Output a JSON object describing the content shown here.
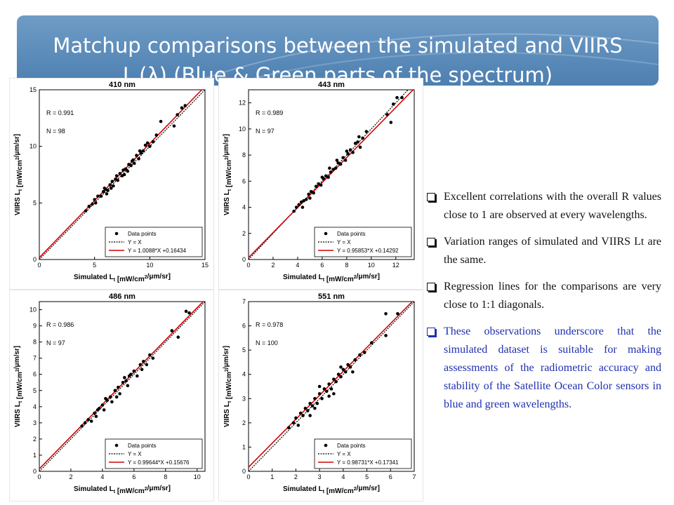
{
  "header": {
    "title_line1": "Matchup comparisons between the simulated and VIIRS",
    "title_line2_prefix": "L",
    "title_line2_sub": "t",
    "title_line2_suffix": "(λ) (Blue & Green parts of the spectrum)"
  },
  "bullets": [
    {
      "text": "Excellent correlations with the overall R values close to 1 are observed at every wavelengths.",
      "color": "#111111"
    },
    {
      "text": "Variation ranges of simulated and VIIRS Lt are the same.",
      "color": "#111111"
    },
    {
      "text": "Regression lines for the comparisons are very close to 1:1 diagonals.",
      "color": "#111111"
    },
    {
      "text": "These observations underscore that the simulated dataset is suitable for making assessments of the radiometric accuracy and stability of the Satellite Ocean Color sensors in blue and green wavelengths.",
      "color": "#1f2fb0"
    }
  ],
  "chart_data": [
    {
      "type": "scatter",
      "title": "410 nm",
      "xlabel": "Simulated L_t [mW/cm^2/μm/sr]",
      "ylabel": "VIIRS L_t [mW/cm^2/μm/sr]",
      "xlim": [
        0,
        15
      ],
      "ylim": [
        0,
        15
      ],
      "xticks": [
        0,
        5,
        10,
        15
      ],
      "yticks": [
        0,
        5,
        10,
        15
      ],
      "annotations": [
        "R = 0.991",
        "N = 98"
      ],
      "legend": {
        "placement": "bottom-right",
        "entries": [
          "Data points",
          "Y = X",
          "Y = 1.0088*X +0.16434"
        ]
      },
      "fit": {
        "slope": 1.0088,
        "intercept": 0.16434
      },
      "points": [
        [
          4.2,
          4.3
        ],
        [
          4.5,
          4.7
        ],
        [
          4.8,
          4.9
        ],
        [
          5.1,
          5.0
        ],
        [
          5.3,
          5.6
        ],
        [
          5.6,
          5.6
        ],
        [
          5.8,
          6.0
        ],
        [
          6.0,
          6.2
        ],
        [
          6.2,
          6.1
        ],
        [
          6.4,
          6.6
        ],
        [
          6.6,
          6.9
        ],
        [
          6.7,
          6.5
        ],
        [
          6.9,
          7.1
        ],
        [
          7.1,
          7.0
        ],
        [
          7.3,
          7.6
        ],
        [
          7.5,
          7.4
        ],
        [
          7.6,
          7.9
        ],
        [
          7.8,
          8.0
        ],
        [
          8.0,
          7.8
        ],
        [
          8.1,
          8.4
        ],
        [
          8.3,
          8.3
        ],
        [
          8.5,
          8.8
        ],
        [
          8.6,
          8.5
        ],
        [
          8.8,
          9.2
        ],
        [
          9.0,
          8.9
        ],
        [
          9.2,
          9.4
        ],
        [
          9.4,
          9.6
        ],
        [
          9.6,
          10.1
        ],
        [
          9.8,
          10.3
        ],
        [
          10.0,
          10.0
        ],
        [
          10.3,
          10.4
        ],
        [
          10.6,
          11.0
        ],
        [
          11.0,
          12.2
        ],
        [
          12.2,
          11.8
        ],
        [
          12.5,
          12.8
        ],
        [
          12.9,
          13.4
        ],
        [
          13.2,
          13.6
        ],
        [
          6.1,
          5.8
        ],
        [
          6.5,
          6.3
        ],
        [
          7.0,
          7.4
        ],
        [
          7.7,
          7.5
        ],
        [
          8.4,
          8.7
        ],
        [
          5.0,
          5.3
        ],
        [
          5.9,
          6.3
        ],
        [
          9.1,
          9.6
        ]
      ]
    },
    {
      "type": "scatter",
      "title": "443 nm",
      "xlabel": "Simulated L_t [mW/cm^2/μm/sr]",
      "ylabel": "VIIRS L_t [mW/cm^2/μm/sr]",
      "xlim": [
        0,
        13.5
      ],
      "ylim": [
        0,
        13
      ],
      "xticks": [
        0,
        2,
        4,
        6,
        8,
        10,
        12
      ],
      "yticks": [
        0,
        2,
        4,
        6,
        8,
        10,
        12
      ],
      "annotations": [
        "R = 0.989",
        "N = 97"
      ],
      "legend": {
        "placement": "bottom-right",
        "entries": [
          "Data points",
          "Y = X",
          "Y = 0.95853*X +0.14292"
        ]
      },
      "fit": {
        "slope": 0.95853,
        "intercept": 0.14292
      },
      "points": [
        [
          3.7,
          3.7
        ],
        [
          3.9,
          4.0
        ],
        [
          4.1,
          4.2
        ],
        [
          4.3,
          4.4
        ],
        [
          4.5,
          4.5
        ],
        [
          4.7,
          4.6
        ],
        [
          4.9,
          5.0
        ],
        [
          5.1,
          5.2
        ],
        [
          5.3,
          5.1
        ],
        [
          5.5,
          5.6
        ],
        [
          5.7,
          5.8
        ],
        [
          5.9,
          5.7
        ],
        [
          6.1,
          6.2
        ],
        [
          6.3,
          6.4
        ],
        [
          6.5,
          6.3
        ],
        [
          6.7,
          6.7
        ],
        [
          6.9,
          6.9
        ],
        [
          7.1,
          7.0
        ],
        [
          7.3,
          7.4
        ],
        [
          7.5,
          7.3
        ],
        [
          7.7,
          7.8
        ],
        [
          7.9,
          7.6
        ],
        [
          8.1,
          8.1
        ],
        [
          8.3,
          8.4
        ],
        [
          8.5,
          8.2
        ],
        [
          8.7,
          8.9
        ],
        [
          8.9,
          9.0
        ],
        [
          9.1,
          8.6
        ],
        [
          9.3,
          9.3
        ],
        [
          9.6,
          9.8
        ],
        [
          11.3,
          11.1
        ],
        [
          11.8,
          11.9
        ],
        [
          12.1,
          12.4
        ],
        [
          12.5,
          12.4
        ],
        [
          11.6,
          10.5
        ],
        [
          4.4,
          4.0
        ],
        [
          5.0,
          4.7
        ],
        [
          6.0,
          6.3
        ],
        [
          6.6,
          7.0
        ],
        [
          7.2,
          7.6
        ],
        [
          8.0,
          8.3
        ],
        [
          9.0,
          9.4
        ]
      ]
    },
    {
      "type": "scatter",
      "title": "486 nm",
      "xlabel": "Simulated L_t [mW/cm^2/μm/sr]",
      "ylabel": "VIIRS L_t [mW/cm^2/μm/sr]",
      "xlim": [
        0,
        10.5
      ],
      "ylim": [
        0,
        10.5
      ],
      "xticks": [
        0,
        2,
        4,
        6,
        8,
        10
      ],
      "yticks": [
        0,
        1,
        2,
        3,
        4,
        5,
        6,
        7,
        8,
        9,
        10
      ],
      "annotations": [
        "R = 0.986",
        "N = 97"
      ],
      "legend": {
        "placement": "bottom-right",
        "entries": [
          "Data points",
          "Y = X",
          "Y = 0.99644*X +0.15676"
        ]
      },
      "fit": {
        "slope": 0.99644,
        "intercept": 0.15676
      },
      "points": [
        [
          2.7,
          2.8
        ],
        [
          2.9,
          3.0
        ],
        [
          3.1,
          3.2
        ],
        [
          3.3,
          3.1
        ],
        [
          3.5,
          3.6
        ],
        [
          3.6,
          3.4
        ],
        [
          3.8,
          3.9
        ],
        [
          4.0,
          4.1
        ],
        [
          4.1,
          3.8
        ],
        [
          4.3,
          4.4
        ],
        [
          4.5,
          4.6
        ],
        [
          4.6,
          4.3
        ],
        [
          4.8,
          5.0
        ],
        [
          5.0,
          5.2
        ],
        [
          5.1,
          4.8
        ],
        [
          5.3,
          5.5
        ],
        [
          5.5,
          5.6
        ],
        [
          5.6,
          5.3
        ],
        [
          5.8,
          6.0
        ],
        [
          6.0,
          6.2
        ],
        [
          6.2,
          5.9
        ],
        [
          6.4,
          6.6
        ],
        [
          6.6,
          6.8
        ],
        [
          6.8,
          6.6
        ],
        [
          7.0,
          7.2
        ],
        [
          7.2,
          7.0
        ],
        [
          8.4,
          8.7
        ],
        [
          8.8,
          8.3
        ],
        [
          9.3,
          9.9
        ],
        [
          9.5,
          9.8
        ],
        [
          4.2,
          4.5
        ],
        [
          4.9,
          4.6
        ],
        [
          5.7,
          5.9
        ],
        [
          6.5,
          6.3
        ],
        [
          3.7,
          3.8
        ],
        [
          5.4,
          5.8
        ]
      ]
    },
    {
      "type": "scatter",
      "title": "551 nm",
      "xlabel": "Simulated L_t [mW/cm^2/μm/sr]",
      "ylabel": "VIIRS L_t [mW/cm^2/μm/sr]",
      "xlim": [
        0,
        7
      ],
      "ylim": [
        0,
        7
      ],
      "xticks": [
        0,
        1,
        2,
        3,
        4,
        5,
        6,
        7
      ],
      "yticks": [
        0,
        1,
        2,
        3,
        4,
        5,
        6,
        7
      ],
      "annotations": [
        "R = 0.978",
        "N = 100"
      ],
      "legend": {
        "placement": "bottom-right",
        "entries": [
          "Data points",
          "Y = X",
          "Y = 0.98731*X +0.17341"
        ]
      },
      "fit": {
        "slope": 0.98731,
        "intercept": 0.17341
      },
      "points": [
        [
          1.7,
          1.8
        ],
        [
          1.9,
          2.0
        ],
        [
          2.0,
          2.2
        ],
        [
          2.1,
          1.9
        ],
        [
          2.2,
          2.4
        ],
        [
          2.3,
          2.3
        ],
        [
          2.4,
          2.6
        ],
        [
          2.5,
          2.5
        ],
        [
          2.6,
          2.8
        ],
        [
          2.7,
          2.7
        ],
        [
          2.8,
          3.0
        ],
        [
          2.9,
          2.8
        ],
        [
          3.0,
          3.2
        ],
        [
          3.1,
          3.0
        ],
        [
          3.2,
          3.4
        ],
        [
          3.3,
          3.3
        ],
        [
          3.4,
          3.6
        ],
        [
          3.5,
          3.4
        ],
        [
          3.6,
          3.8
        ],
        [
          3.7,
          3.7
        ],
        [
          3.8,
          4.0
        ],
        [
          3.9,
          3.9
        ],
        [
          4.0,
          4.2
        ],
        [
          4.1,
          4.1
        ],
        [
          4.2,
          4.4
        ],
        [
          4.3,
          4.3
        ],
        [
          4.5,
          4.6
        ],
        [
          4.7,
          4.8
        ],
        [
          5.2,
          5.3
        ],
        [
          5.8,
          6.5
        ],
        [
          5.8,
          5.6
        ],
        [
          6.3,
          6.5
        ],
        [
          2.6,
          2.3
        ],
        [
          3.0,
          3.5
        ],
        [
          3.4,
          3.1
        ],
        [
          3.9,
          4.3
        ],
        [
          4.4,
          4.1
        ],
        [
          3.6,
          3.2
        ],
        [
          2.8,
          2.6
        ],
        [
          4.9,
          4.9
        ]
      ]
    }
  ]
}
